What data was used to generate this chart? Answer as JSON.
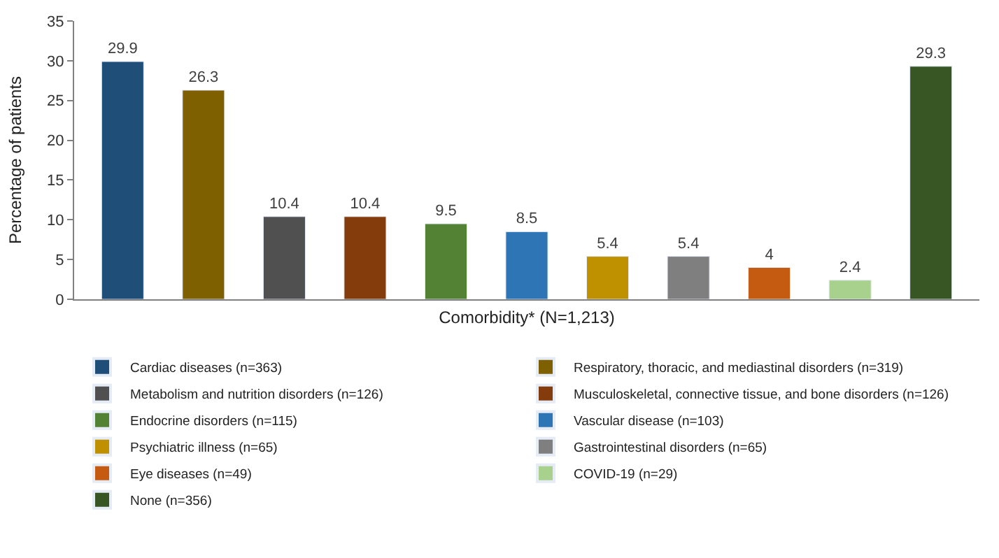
{
  "chart_data": {
    "type": "bar",
    "xlabel": "Comorbidity* (N=1,213)",
    "ylabel": "Percentage of patients",
    "categories": [
      null,
      null,
      null,
      null,
      null,
      null,
      null,
      null,
      null,
      null,
      null
    ],
    "series": [
      {
        "name": "Cardiac diseases (n=363)",
        "color": "#1f4e79",
        "values": [
          29.9,
          null,
          null,
          null,
          null,
          null,
          null,
          null,
          null,
          null,
          null
        ]
      },
      {
        "name": "Respiratory, thoracic, and mediastinal disorders (n=319)",
        "color": "#7f6000",
        "values": [
          null,
          26.3,
          null,
          null,
          null,
          null,
          null,
          null,
          null,
          null,
          null
        ]
      },
      {
        "name": "Metabolism and nutrition disorders (n=126)",
        "color": "#505050",
        "values": [
          null,
          null,
          10.4,
          null,
          null,
          null,
          null,
          null,
          null,
          null,
          null
        ]
      },
      {
        "name": "Musculoskeletal, connective tissue, and bone disorders (n=126)",
        "color": "#843c0c",
        "values": [
          null,
          null,
          null,
          10.4,
          null,
          null,
          null,
          null,
          null,
          null,
          null
        ]
      },
      {
        "name": "Endocrine disorders (n=115)",
        "color": "#548235",
        "values": [
          null,
          null,
          null,
          null,
          9.5,
          null,
          null,
          null,
          null,
          null,
          null
        ]
      },
      {
        "name": "Vascular disease (n=103)",
        "color": "#2e75b6",
        "values": [
          null,
          null,
          null,
          null,
          null,
          8.5,
          null,
          null,
          null,
          null,
          null
        ]
      },
      {
        "name": "Psychiatric illness (n=65)",
        "color": "#bf9000",
        "values": [
          null,
          null,
          null,
          null,
          null,
          null,
          5.4,
          null,
          null,
          null,
          null
        ]
      },
      {
        "name": "Gastrointestinal disorders (n=65)",
        "color": "#7f7f7f",
        "values": [
          null,
          null,
          null,
          null,
          null,
          null,
          null,
          5.4,
          null,
          null,
          null
        ]
      },
      {
        "name": "Eye diseases (n=49)",
        "color": "#c55a11",
        "values": [
          null,
          null,
          null,
          null,
          null,
          null,
          null,
          null,
          4,
          null,
          null
        ]
      },
      {
        "name": "COVID-19 (n=29)",
        "color": "#a9d18e",
        "values": [
          null,
          null,
          null,
          null,
          null,
          null,
          null,
          null,
          null,
          2.4,
          null
        ]
      },
      {
        "name": "None (n=356)",
        "color": "#375623",
        "values": [
          null,
          null,
          null,
          null,
          null,
          null,
          null,
          null,
          null,
          null,
          29.3
        ]
      }
    ],
    "ylim": [
      0,
      35
    ],
    "yticks": [
      0,
      5,
      10,
      15,
      20,
      25,
      30,
      35
    ],
    "data_labels": true,
    "legend": "bottom"
  }
}
